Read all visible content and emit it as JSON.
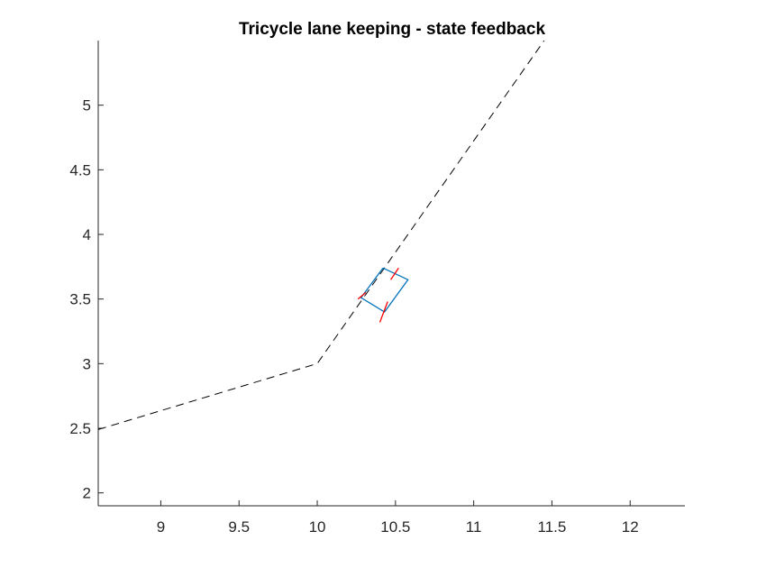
{
  "chart_data": {
    "type": "line",
    "title": "Tricycle lane keeping - state feedback",
    "xlabel": "",
    "ylabel": "",
    "xlim": [
      8.6,
      12.35
    ],
    "ylim": [
      1.9,
      5.5
    ],
    "xticks": [
      9,
      9.5,
      10,
      10.5,
      11,
      11.5,
      12
    ],
    "xtick_labels": [
      "9",
      "9.5",
      "10",
      "10.5",
      "11",
      "11.5",
      "12"
    ],
    "yticks": [
      2,
      2.5,
      3,
      3.5,
      4,
      4.5,
      5
    ],
    "ytick_labels": [
      "2",
      "2.5",
      "3",
      "3.5",
      "4",
      "4.5",
      "5"
    ],
    "grid": false,
    "box": false,
    "series": [
      {
        "style": "dashed",
        "color": "#000000",
        "x": [
          8.6,
          10.0,
          11.45
        ],
        "y": [
          2.49,
          3.0,
          5.5
        ]
      }
    ],
    "vehicle": {
      "body": {
        "color": "#0072BD",
        "x": [
          10.42,
          10.58,
          10.43,
          10.28,
          10.42
        ],
        "y": [
          3.74,
          3.65,
          3.4,
          3.51,
          3.74
        ]
      },
      "wheels": [
        {
          "color": "#FF0000",
          "x": [
            10.4,
            10.45
          ],
          "y": [
            3.32,
            3.48
          ]
        },
        {
          "color": "#FF0000",
          "x": [
            10.26,
            10.31
          ],
          "y": [
            3.5,
            3.55
          ]
        },
        {
          "color": "#FF0000",
          "x": [
            10.47,
            10.52
          ],
          "y": [
            3.65,
            3.74
          ]
        }
      ]
    }
  }
}
